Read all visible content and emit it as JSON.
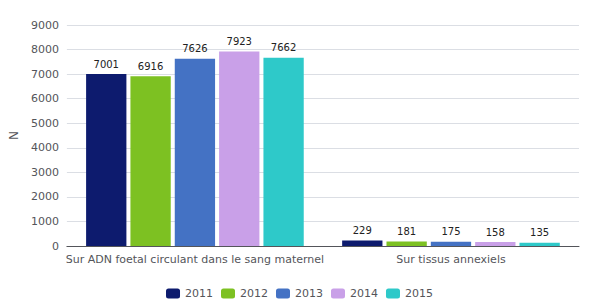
{
  "chart_data": {
    "type": "bar",
    "categories": [
      "Sur ADN foetal circulant dans le sang maternel",
      "Sur tissus annexiels"
    ],
    "series": [
      {
        "name": "2011",
        "color": "#0d1b6e",
        "values": [
          7001,
          229
        ]
      },
      {
        "name": "2012",
        "color": "#7dc122",
        "values": [
          6916,
          181
        ]
      },
      {
        "name": "2013",
        "color": "#4472c4",
        "values": [
          7626,
          175
        ]
      },
      {
        "name": "2014",
        "color": "#c9a0e8",
        "values": [
          7923,
          158
        ]
      },
      {
        "name": "2015",
        "color": "#2ec9c9",
        "values": [
          7662,
          135
        ]
      }
    ],
    "ylabel": "N",
    "ylim": [
      0,
      9000
    ],
    "yticks": [
      0,
      1000,
      2000,
      3000,
      4000,
      5000,
      6000,
      7000,
      8000,
      9000
    ],
    "grid": true,
    "legend": "bottom",
    "data_labels": true
  }
}
